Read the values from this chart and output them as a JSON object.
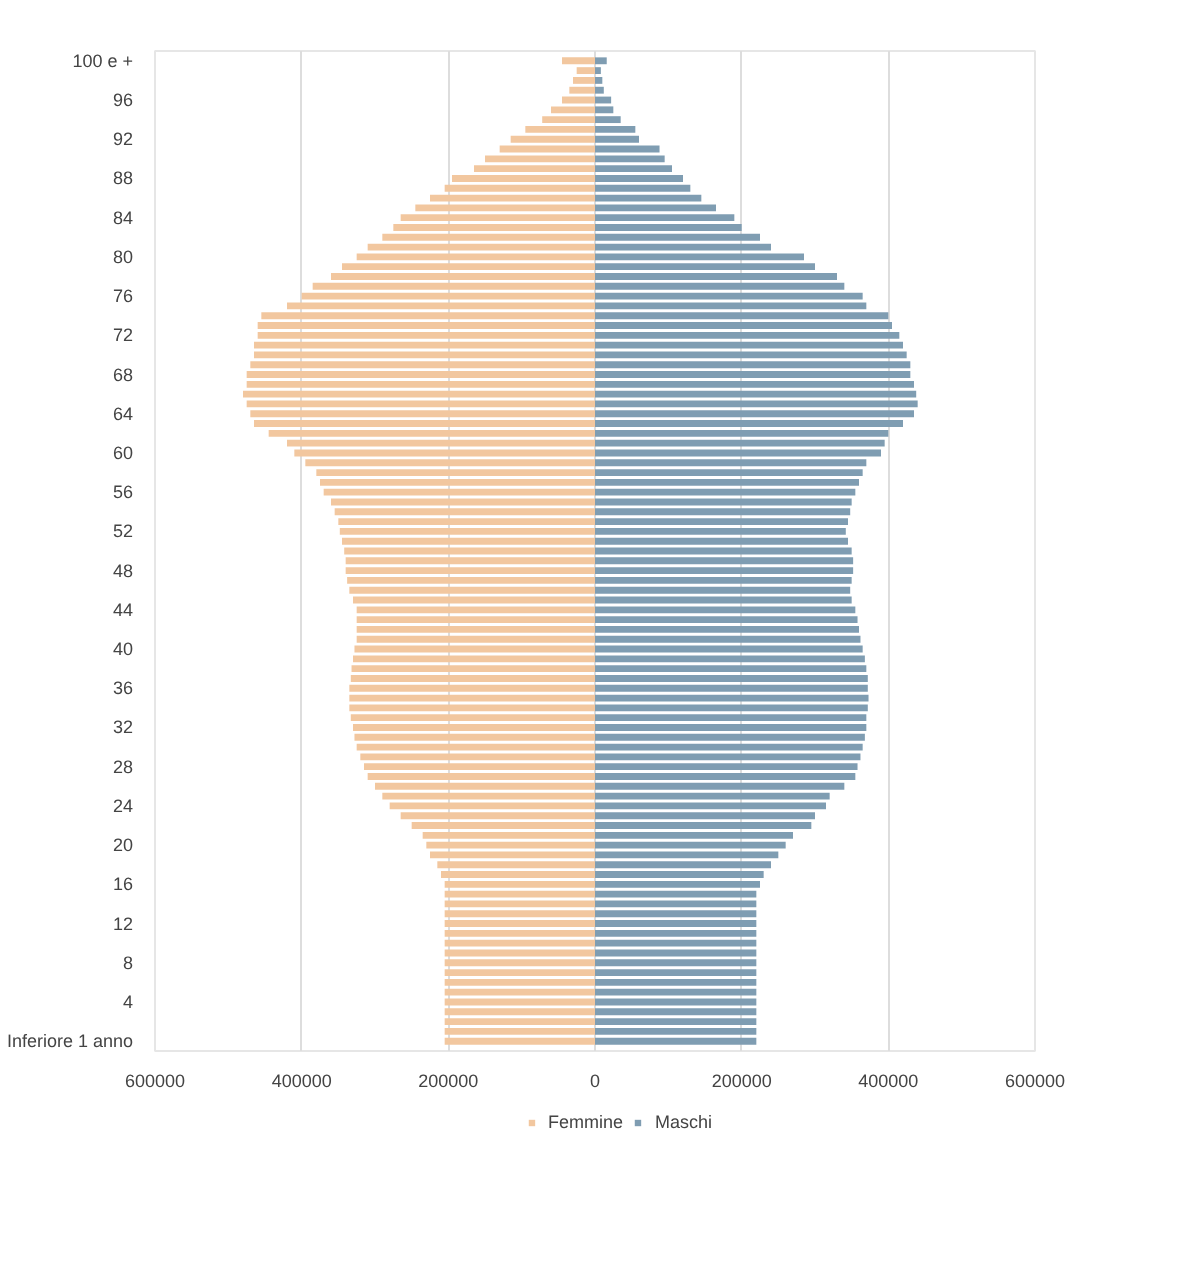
{
  "chart_data": {
    "type": "bar",
    "orientation": "horizontal",
    "categories": [
      "100 e +",
      null,
      null,
      null,
      "96",
      null,
      null,
      null,
      "92",
      null,
      null,
      null,
      "88",
      null,
      null,
      null,
      "84",
      null,
      null,
      null,
      "80",
      null,
      null,
      null,
      "76",
      null,
      null,
      null,
      "72",
      null,
      null,
      null,
      "68",
      null,
      null,
      null,
      "64",
      null,
      null,
      null,
      "60",
      null,
      null,
      null,
      "56",
      null,
      null,
      null,
      "52",
      null,
      null,
      null,
      "48",
      null,
      null,
      null,
      "44",
      null,
      null,
      null,
      "40",
      null,
      null,
      null,
      "36",
      null,
      null,
      null,
      "32",
      null,
      null,
      null,
      "28",
      null,
      null,
      null,
      "24",
      null,
      null,
      null,
      "20",
      null,
      null,
      null,
      "16",
      null,
      null,
      null,
      "12",
      null,
      null,
      null,
      "8",
      null,
      null,
      null,
      "4",
      null,
      null,
      null,
      "Inferiore 1 anno"
    ],
    "series": [
      {
        "name": "Femmine",
        "color": "#f2c79f",
        "values": [
          -45000,
          -25000,
          -30000,
          -35000,
          -45000,
          -60000,
          -72000,
          -95000,
          -115000,
          -130000,
          -150000,
          -165000,
          -195000,
          -205000,
          -225000,
          -245000,
          -265000,
          -275000,
          -290000,
          -310000,
          -325000,
          -345000,
          -360000,
          -385000,
          -400000,
          -420000,
          -455000,
          -460000,
          -460000,
          -465000,
          -465000,
          -470000,
          -475000,
          -475000,
          -480000,
          -475000,
          -470000,
          -465000,
          -445000,
          -420000,
          -410000,
          -395000,
          -380000,
          -375000,
          -370000,
          -360000,
          -355000,
          -350000,
          -348000,
          -345000,
          -342000,
          -340000,
          -340000,
          -338000,
          -335000,
          -330000,
          -325000,
          -325000,
          -325000,
          -325000,
          -328000,
          -330000,
          -332000,
          -333000,
          -335000,
          -335000,
          -335000,
          -333000,
          -330000,
          -328000,
          -325000,
          -320000,
          -315000,
          -310000,
          -300000,
          -290000,
          -280000,
          -265000,
          -250000,
          -235000,
          -230000,
          -225000,
          -215000,
          -210000,
          -205000,
          -205000,
          -205000,
          -205000,
          -205000,
          -205000,
          -205000,
          -205000,
          -205000,
          -205000,
          -205000,
          -205000,
          -205000,
          -205000,
          -205000,
          -205000,
          -205000
        ]
      },
      {
        "name": "Maschi",
        "color": "#7f9db2",
        "values": [
          16000,
          8000,
          10000,
          12000,
          22000,
          25000,
          35000,
          55000,
          60000,
          88000,
          95000,
          105000,
          120000,
          130000,
          145000,
          165000,
          190000,
          200000,
          225000,
          240000,
          285000,
          300000,
          330000,
          340000,
          365000,
          370000,
          400000,
          405000,
          415000,
          420000,
          425000,
          430000,
          430000,
          435000,
          438000,
          440000,
          435000,
          420000,
          400000,
          395000,
          390000,
          370000,
          365000,
          360000,
          355000,
          350000,
          348000,
          345000,
          342000,
          345000,
          350000,
          352000,
          352000,
          350000,
          348000,
          350000,
          355000,
          358000,
          360000,
          362000,
          365000,
          368000,
          370000,
          372000,
          372000,
          373000,
          372000,
          370000,
          370000,
          368000,
          365000,
          362000,
          358000,
          355000,
          340000,
          320000,
          315000,
          300000,
          295000,
          270000,
          260000,
          250000,
          240000,
          230000,
          225000,
          220000,
          220000,
          220000,
          220000,
          220000,
          220000,
          220000,
          220000,
          220000,
          220000,
          220000,
          220000,
          220000,
          220000,
          220000,
          220000
        ]
      }
    ],
    "xlim": [
      -600000,
      600000
    ],
    "xticks": [
      {
        "value": -600000,
        "label": "600000"
      },
      {
        "value": -400000,
        "label": "400000"
      },
      {
        "value": -200000,
        "label": "200000"
      },
      0,
      200000,
      400000,
      600000
    ],
    "grid": "x",
    "legend": "bottom",
    "stacked": true
  }
}
